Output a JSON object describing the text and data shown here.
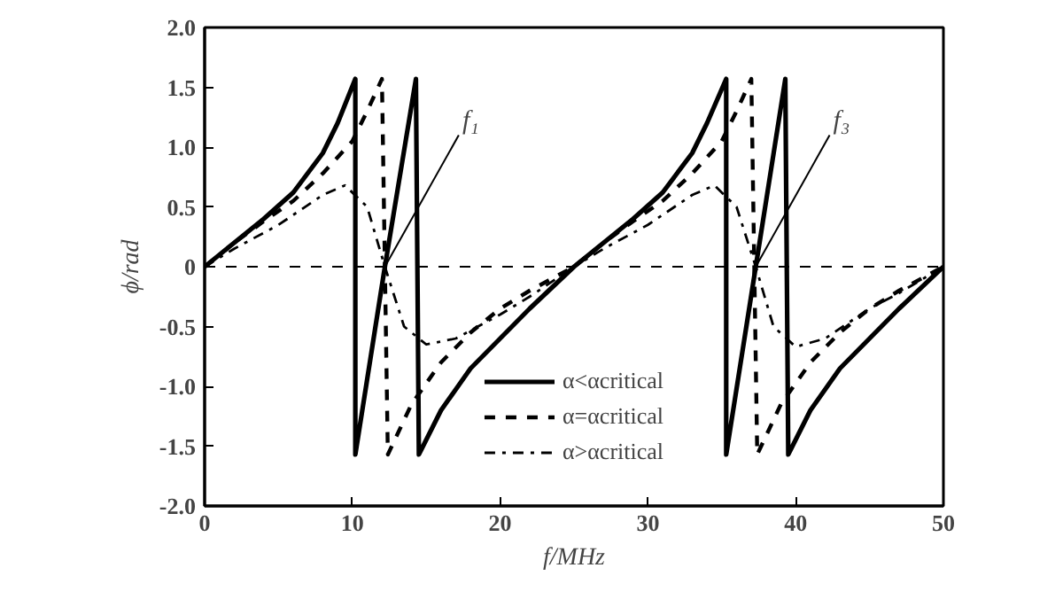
{
  "chart_data": {
    "type": "line",
    "xlabel": "f/MHz",
    "ylabel": "ϕ/rad",
    "xlim": [
      0,
      50
    ],
    "ylim": [
      -2.0,
      2.0
    ],
    "xticks": [
      0,
      10,
      20,
      30,
      40,
      50
    ],
    "yticks": [
      {
        "value": 2.0,
        "label": "2.0"
      },
      {
        "value": 1.5,
        "label": "1.5"
      },
      {
        "value": 1.0,
        "label": "1.0"
      },
      {
        "value": 0.5,
        "label": "0.5"
      },
      0,
      {
        "value": -0.5,
        "label": "-0.5"
      },
      {
        "value": -1.0,
        "label": "-1.0"
      },
      {
        "value": -1.5,
        "label": "-1.5"
      },
      {
        "value": -2.0,
        "label": "-2.0"
      }
    ],
    "grid": false,
    "legend": "bottom",
    "marker": "none",
    "ref_lines": [
      {
        "axis": "y",
        "value": 0,
        "line_style": "dashed",
        "color": "#000000"
      }
    ],
    "annotations": [
      {
        "text": "f₁",
        "x": 12.2,
        "y": 0
      },
      {
        "text": "f₃",
        "x": 37.3,
        "y": 0
      }
    ],
    "series": [
      {
        "name": "α<αcritical",
        "color": "#000000",
        "line_style": "solid",
        "x": [
          0,
          2,
          4,
          6,
          8,
          9,
          10.2,
          10.2,
          12.2,
          14.3,
          14.5,
          16,
          18,
          20,
          22,
          25,
          27,
          29,
          31,
          33,
          34,
          35.3,
          35.3,
          37.3,
          39.3,
          39.5,
          41,
          43,
          45,
          47,
          50
        ],
        "values": [
          0,
          0.2,
          0.4,
          0.62,
          0.95,
          1.2,
          1.57,
          -1.57,
          0,
          1.57,
          -1.57,
          -1.2,
          -0.85,
          -0.6,
          -0.35,
          0,
          0.2,
          0.4,
          0.62,
          0.95,
          1.2,
          1.57,
          -1.57,
          0,
          1.57,
          -1.57,
          -1.2,
          -0.85,
          -0.6,
          -0.35,
          0
        ]
      },
      {
        "name": "α=αcritical",
        "color": "#000000",
        "line_style": "dashed",
        "x": [
          0,
          2,
          4,
          6,
          8,
          10,
          11,
          12.0,
          12.4,
          14,
          16,
          18,
          20,
          22,
          25,
          27,
          29,
          31,
          33,
          35,
          36,
          37.0,
          37.4,
          39,
          41,
          43,
          45,
          47,
          50
        ],
        "values": [
          0,
          0.2,
          0.38,
          0.55,
          0.78,
          1.05,
          1.3,
          1.57,
          -1.57,
          -1.15,
          -0.8,
          -0.55,
          -0.35,
          -0.2,
          0,
          0.2,
          0.38,
          0.55,
          0.78,
          1.05,
          1.3,
          1.57,
          -1.57,
          -1.15,
          -0.8,
          -0.55,
          -0.35,
          -0.2,
          0
        ]
      },
      {
        "name": "α>αcritical",
        "color": "#000000",
        "line_style": "dashdot",
        "x": [
          0,
          2,
          5,
          8,
          9.5,
          11,
          12.2,
          13.5,
          15,
          17,
          20,
          22,
          25,
          27,
          30,
          33,
          34.5,
          36,
          37.3,
          38.5,
          40,
          42,
          45,
          47,
          50
        ],
        "values": [
          0,
          0.15,
          0.35,
          0.6,
          0.68,
          0.5,
          0,
          -0.5,
          -0.65,
          -0.6,
          -0.4,
          -0.25,
          0,
          0.15,
          0.35,
          0.6,
          0.68,
          0.5,
          0,
          -0.5,
          -0.67,
          -0.6,
          -0.35,
          -0.22,
          0
        ]
      }
    ]
  }
}
